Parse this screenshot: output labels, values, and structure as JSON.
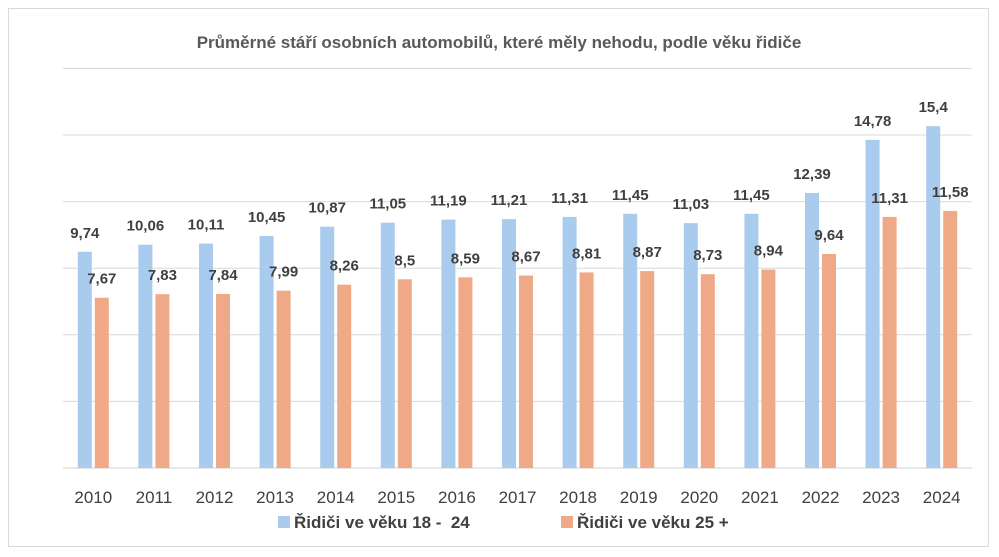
{
  "chart_data": {
    "type": "bar",
    "title": "Průměrné stáří osobních automobilů, které měly nehodu, podle věku řidiče",
    "xlabel": "",
    "ylabel": "",
    "ylim": [
      0,
      18
    ],
    "grid": true,
    "legend_position": "bottom",
    "categories": [
      "2010",
      "2011",
      "2012",
      "2013",
      "2014",
      "2015",
      "2016",
      "2017",
      "2018",
      "2019",
      "2020",
      "2021",
      "2022",
      "2023",
      "2024"
    ],
    "series": [
      {
        "name": "Řidiči ve věku 18 -  24",
        "color": "#a9cbed",
        "values": [
          9.74,
          10.06,
          10.11,
          10.45,
          10.87,
          11.05,
          11.19,
          11.21,
          11.31,
          11.45,
          11.03,
          11.45,
          12.39,
          14.78,
          15.4
        ],
        "labels": [
          "9,74",
          "10,06",
          "10,11",
          "10,45",
          "10,87",
          "11,05",
          "11,19",
          "11,21",
          "11,31",
          "11,45",
          "11,03",
          "11,45",
          "12,39",
          "14,78",
          "15,4"
        ]
      },
      {
        "name": "Řidiči ve věku 25 +",
        "color": "#f0a986",
        "values": [
          7.67,
          7.83,
          7.84,
          7.99,
          8.26,
          8.5,
          8.59,
          8.67,
          8.81,
          8.87,
          8.73,
          8.94,
          9.64,
          11.31,
          11.58
        ],
        "labels": [
          "7,67",
          "7,83",
          "7,84",
          "7,99",
          "8,26",
          "8,5",
          "8,59",
          "8,67",
          "8,81",
          "8,87",
          "8,73",
          "8,94",
          "9,64",
          "11,31",
          "11,58"
        ]
      }
    ]
  }
}
